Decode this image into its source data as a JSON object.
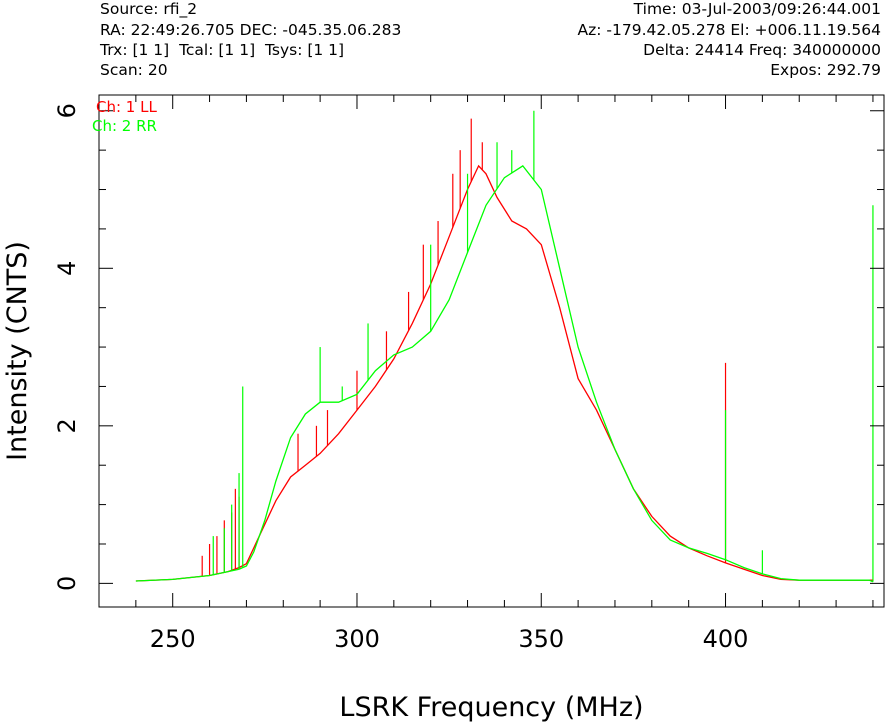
{
  "header": {
    "source": "Source: rfi_2",
    "time": "Time: 03-Jul-2003/09:26:44.001",
    "coords": "RA: 22:49:26.705 DEC: -045.35.06.283",
    "azel": "Az: -179.42.05.278 El: +006.11.19.564",
    "trx": "Trx: [1 1]  Tcal: [1 1]  Tsys: [1 1]",
    "delta": "Delta: 24414 Freq: 340000000",
    "scan": "Scan: 20",
    "expos": "Expos: 292.79"
  },
  "chart_data": {
    "type": "line",
    "title": "",
    "xlabel": "LSRK Frequency (MHz)",
    "ylabel": "Intensity (CNTS)",
    "xlim": [
      230,
      443
    ],
    "ylim": [
      -0.3,
      6.2
    ],
    "xticks": [
      250,
      300,
      350,
      400
    ],
    "yticks": [
      0,
      2,
      4,
      6
    ],
    "grid": false,
    "legend_position": "top-left",
    "series": [
      {
        "name": "Ch: 1 LL",
        "color": "#ff0000",
        "points": [
          [
            240,
            0.03
          ],
          [
            250,
            0.05
          ],
          [
            260,
            0.1
          ],
          [
            265,
            0.15
          ],
          [
            268,
            0.2
          ],
          [
            270,
            0.25
          ],
          [
            272,
            0.45
          ],
          [
            275,
            0.75
          ],
          [
            278,
            1.05
          ],
          [
            282,
            1.35
          ],
          [
            286,
            1.5
          ],
          [
            290,
            1.65
          ],
          [
            295,
            1.9
          ],
          [
            300,
            2.2
          ],
          [
            305,
            2.5
          ],
          [
            310,
            2.85
          ],
          [
            315,
            3.3
          ],
          [
            320,
            3.8
          ],
          [
            325,
            4.4
          ],
          [
            330,
            5.0
          ],
          [
            333,
            5.3
          ],
          [
            335,
            5.2
          ],
          [
            338,
            4.9
          ],
          [
            342,
            4.6
          ],
          [
            346,
            4.5
          ],
          [
            350,
            4.3
          ],
          [
            355,
            3.5
          ],
          [
            360,
            2.6
          ],
          [
            365,
            2.2
          ],
          [
            370,
            1.7
          ],
          [
            375,
            1.2
          ],
          [
            380,
            0.85
          ],
          [
            385,
            0.6
          ],
          [
            390,
            0.45
          ],
          [
            395,
            0.35
          ],
          [
            400,
            0.26
          ],
          [
            405,
            0.18
          ],
          [
            410,
            0.1
          ],
          [
            415,
            0.05
          ],
          [
            420,
            0.04
          ],
          [
            430,
            0.04
          ],
          [
            440,
            0.04
          ]
        ],
        "spikes": [
          [
            258,
            0.35
          ],
          [
            260,
            0.5
          ],
          [
            262,
            0.6
          ],
          [
            264,
            0.8
          ],
          [
            266,
            0.9
          ],
          [
            267,
            1.2
          ],
          [
            268,
            1.1
          ],
          [
            284,
            1.9
          ],
          [
            289,
            2.0
          ],
          [
            292,
            2.2
          ],
          [
            300,
            2.7
          ],
          [
            308,
            3.2
          ],
          [
            314,
            3.7
          ],
          [
            318,
            4.3
          ],
          [
            322,
            4.6
          ],
          [
            326,
            5.2
          ],
          [
            328,
            5.5
          ],
          [
            331,
            5.9
          ],
          [
            334,
            5.6
          ],
          [
            400,
            2.8
          ]
        ]
      },
      {
        "name": "Ch: 2 RR",
        "color": "#00ff00",
        "points": [
          [
            240,
            0.03
          ],
          [
            250,
            0.05
          ],
          [
            260,
            0.1
          ],
          [
            265,
            0.15
          ],
          [
            268,
            0.18
          ],
          [
            270,
            0.22
          ],
          [
            272,
            0.4
          ],
          [
            275,
            0.8
          ],
          [
            278,
            1.3
          ],
          [
            282,
            1.85
          ],
          [
            286,
            2.15
          ],
          [
            290,
            2.3
          ],
          [
            295,
            2.3
          ],
          [
            300,
            2.4
          ],
          [
            305,
            2.7
          ],
          [
            310,
            2.9
          ],
          [
            315,
            3.0
          ],
          [
            320,
            3.2
          ],
          [
            325,
            3.6
          ],
          [
            330,
            4.2
          ],
          [
            335,
            4.8
          ],
          [
            340,
            5.15
          ],
          [
            345,
            5.3
          ],
          [
            350,
            5.0
          ],
          [
            355,
            4.0
          ],
          [
            360,
            3.0
          ],
          [
            365,
            2.3
          ],
          [
            370,
            1.7
          ],
          [
            375,
            1.2
          ],
          [
            380,
            0.8
          ],
          [
            385,
            0.55
          ],
          [
            390,
            0.45
          ],
          [
            395,
            0.38
          ],
          [
            400,
            0.3
          ],
          [
            405,
            0.2
          ],
          [
            410,
            0.12
          ],
          [
            415,
            0.06
          ],
          [
            420,
            0.04
          ],
          [
            430,
            0.04
          ],
          [
            439,
            0.04
          ],
          [
            440,
            0.02
          ]
        ],
        "spikes": [
          [
            261,
            0.6
          ],
          [
            264,
            0.7
          ],
          [
            266,
            1.0
          ],
          [
            268,
            1.4
          ],
          [
            269,
            2.5
          ],
          [
            290,
            3.0
          ],
          [
            296,
            2.5
          ],
          [
            303,
            3.3
          ],
          [
            320,
            4.3
          ],
          [
            330,
            5.2
          ],
          [
            338,
            5.6
          ],
          [
            342,
            5.5
          ],
          [
            348,
            6.0
          ],
          [
            400,
            2.2
          ],
          [
            410,
            0.42
          ],
          [
            440,
            4.8
          ]
        ]
      }
    ]
  }
}
